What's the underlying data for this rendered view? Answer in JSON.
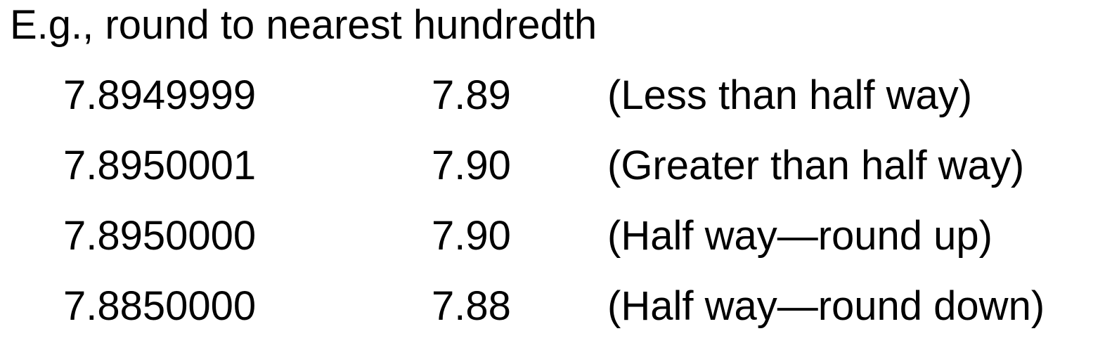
{
  "heading": "E.g., round to nearest hundredth",
  "rows": [
    {
      "original": "7.8949999",
      "rounded": "7.89",
      "note": "(Less than half way)"
    },
    {
      "original": "7.8950001",
      "rounded": "7.90",
      "note": "(Greater than half way)"
    },
    {
      "original": "7.8950000",
      "rounded": "7.90",
      "note": "(Half way—round up)"
    },
    {
      "original": "7.8850000",
      "rounded": "7.88",
      "note": "(Half way—round down)"
    }
  ]
}
